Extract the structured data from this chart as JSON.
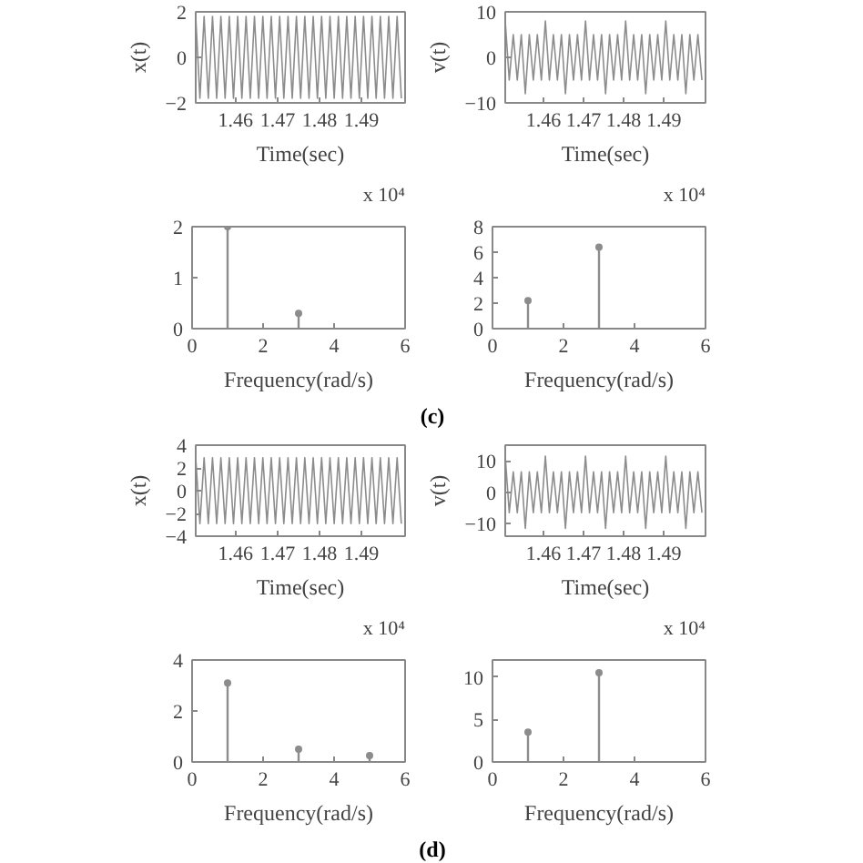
{
  "chart_data": [
    {
      "type": "line",
      "xlabel": "Time(sec)",
      "ylabel": "x(t)",
      "annotations": [
        "x 10⁴"
      ],
      "xlim": [
        1.4505,
        1.5004
      ],
      "xticks": [
        1.46,
        1.47,
        1.48,
        1.49
      ],
      "ylim": [
        -2,
        2
      ],
      "yticks": [
        -2,
        0,
        2
      ],
      "color": "#8c8c8c",
      "x": [
        1.4505,
        1.4515,
        1.4525,
        1.4535,
        1.4545,
        1.4555,
        1.4565,
        1.4575,
        1.4585,
        1.4595,
        1.4605,
        1.4615,
        1.4625,
        1.4635,
        1.4645,
        1.4655,
        1.4665,
        1.4675,
        1.4685,
        1.4695,
        1.4705,
        1.4715,
        1.4725,
        1.4735,
        1.4745,
        1.4755,
        1.4765,
        1.4775,
        1.4785,
        1.4795,
        1.4805,
        1.4815,
        1.4825,
        1.4835,
        1.4845,
        1.4855,
        1.4865,
        1.4875,
        1.4885,
        1.4895,
        1.4905,
        1.4915,
        1.4925,
        1.4935,
        1.4945,
        1.4955,
        1.4965,
        1.4975,
        1.4985,
        1.4995
      ],
      "values": [
        1.8,
        -1.8,
        1.8,
        -1.8,
        1.8,
        -1.8,
        1.8,
        -1.8,
        1.8,
        -1.8,
        1.8,
        -1.8,
        1.8,
        -1.8,
        1.8,
        -1.8,
        1.8,
        -1.8,
        1.8,
        -1.8,
        1.8,
        -1.8,
        1.8,
        -1.8,
        1.8,
        -1.8,
        1.8,
        -1.8,
        1.8,
        -1.8,
        1.8,
        -1.8,
        1.8,
        -1.8,
        1.8,
        -1.8,
        1.8,
        -1.8,
        1.8,
        -1.8,
        1.8,
        -1.8,
        1.8,
        -1.8,
        1.8,
        -1.8,
        1.8,
        -1.8,
        1.8,
        -1.8
      ]
    },
    {
      "type": "line",
      "xlabel": "Time(sec)",
      "ylabel": "v(t)",
      "annotations": [
        "x 10⁴"
      ],
      "xlim": [
        1.4505,
        1.5004
      ],
      "xticks": [
        1.46,
        1.47,
        1.48,
        1.49
      ],
      "ylim": [
        -10,
        10
      ],
      "yticks": [
        -10,
        0,
        10
      ],
      "color": "#8c8c8c",
      "x": [
        1.4505,
        1.4515,
        1.4525,
        1.4535,
        1.4545,
        1.4555,
        1.4565,
        1.4575,
        1.4585,
        1.4595,
        1.4605,
        1.4615,
        1.4625,
        1.4635,
        1.4645,
        1.4655,
        1.4665,
        1.4675,
        1.4685,
        1.4695,
        1.4705,
        1.4715,
        1.4725,
        1.4735,
        1.4745,
        1.4755,
        1.4765,
        1.4775,
        1.4785,
        1.4795,
        1.4805,
        1.4815,
        1.4825,
        1.4835,
        1.4845,
        1.4855,
        1.4865,
        1.4875,
        1.4885,
        1.4895,
        1.4905,
        1.4915,
        1.4925,
        1.4935,
        1.4945,
        1.4955,
        1.4965,
        1.4975,
        1.4985,
        1.4995
      ],
      "values": [
        8,
        -5,
        5,
        -5,
        5,
        -8,
        5,
        -5,
        5,
        -5,
        8,
        -5,
        5,
        -5,
        5,
        -8,
        5,
        -5,
        5,
        -5,
        8,
        -5,
        5,
        -5,
        5,
        -8,
        5,
        -5,
        5,
        -5,
        8,
        -5,
        5,
        -5,
        5,
        -8,
        5,
        -5,
        5,
        -5,
        8,
        -5,
        5,
        -5,
        5,
        -8,
        5,
        -5,
        5,
        -5
      ]
    },
    {
      "type": "lollipop",
      "xlabel": "Frequency(rad/s)",
      "marker": "circle",
      "xlim": [
        0,
        6
      ],
      "xticks": [
        0,
        2,
        4,
        6
      ],
      "ylim": [
        0,
        2
      ],
      "yticks": [
        0,
        1,
        2
      ],
      "color": "#8c8c8c",
      "x": [
        1,
        3
      ],
      "values": [
        2.0,
        0.3
      ]
    },
    {
      "type": "lollipop",
      "xlabel": "Frequency(rad/s)",
      "marker": "circle",
      "xlim": [
        0,
        6
      ],
      "xticks": [
        0,
        2,
        4,
        6
      ],
      "ylim": [
        0,
        8
      ],
      "yticks": [
        0,
        2,
        4,
        6,
        8
      ],
      "color": "#8c8c8c",
      "x": [
        1,
        3
      ],
      "values": [
        2.2,
        6.4
      ]
    },
    {
      "type": "other",
      "annotations": [
        "(c)"
      ]
    },
    {
      "type": "line",
      "xlabel": "Time(sec)",
      "ylabel": "x(t)",
      "annotations": [
        "x 10⁴"
      ],
      "xlim": [
        1.4505,
        1.5004
      ],
      "xticks": [
        1.46,
        1.47,
        1.48,
        1.49
      ],
      "ylim": [
        -4,
        4
      ],
      "yticks": [
        -4,
        -2,
        0,
        2,
        4
      ],
      "color": "#8c8c8c",
      "x": [
        1.4505,
        1.4515,
        1.4525,
        1.4535,
        1.4545,
        1.4555,
        1.4565,
        1.4575,
        1.4585,
        1.4595,
        1.4605,
        1.4615,
        1.4625,
        1.4635,
        1.4645,
        1.4655,
        1.4665,
        1.4675,
        1.4685,
        1.4695,
        1.4705,
        1.4715,
        1.4725,
        1.4735,
        1.4745,
        1.4755,
        1.4765,
        1.4775,
        1.4785,
        1.4795,
        1.4805,
        1.4815,
        1.4825,
        1.4835,
        1.4845,
        1.4855,
        1.4865,
        1.4875,
        1.4885,
        1.4895,
        1.4905,
        1.4915,
        1.4925,
        1.4935,
        1.4945,
        1.4955,
        1.4965,
        1.4975,
        1.4985,
        1.4995
      ],
      "values": [
        2.9,
        -2.9,
        2.9,
        -2.9,
        2.9,
        -2.9,
        2.9,
        -2.9,
        2.9,
        -2.9,
        2.9,
        -2.9,
        2.9,
        -2.9,
        2.9,
        -2.9,
        2.9,
        -2.9,
        2.9,
        -2.9,
        2.9,
        -2.9,
        2.9,
        -2.9,
        2.9,
        -2.9,
        2.9,
        -2.9,
        2.9,
        -2.9,
        2.9,
        -2.9,
        2.9,
        -2.9,
        2.9,
        -2.9,
        2.9,
        -2.9,
        2.9,
        -2.9,
        2.9,
        -2.9,
        2.9,
        -2.9,
        2.9,
        -2.9,
        2.9,
        -2.9,
        2.9,
        -2.9
      ]
    },
    {
      "type": "line",
      "xlabel": "Time(sec)",
      "ylabel": "v(t)",
      "annotations": [
        "x 10⁴"
      ],
      "xlim": [
        1.4505,
        1.5004
      ],
      "xticks": [
        1.46,
        1.47,
        1.48,
        1.49
      ],
      "ylim": [
        -14,
        15
      ],
      "yticks": [
        -10,
        0,
        10
      ],
      "color": "#8c8c8c",
      "x": [
        1.4505,
        1.4515,
        1.4525,
        1.4535,
        1.4545,
        1.4555,
        1.4565,
        1.4575,
        1.4585,
        1.4595,
        1.4605,
        1.4615,
        1.4625,
        1.4635,
        1.4645,
        1.4655,
        1.4665,
        1.4675,
        1.4685,
        1.4695,
        1.4705,
        1.4715,
        1.4725,
        1.4735,
        1.4745,
        1.4755,
        1.4765,
        1.4775,
        1.4785,
        1.4795,
        1.4805,
        1.4815,
        1.4825,
        1.4835,
        1.4845,
        1.4855,
        1.4865,
        1.4875,
        1.4885,
        1.4895,
        1.4905,
        1.4915,
        1.4925,
        1.4935,
        1.4945,
        1.4955,
        1.4965,
        1.4975,
        1.4985,
        1.4995
      ],
      "values": [
        11.5,
        -6.5,
        6.5,
        -6.5,
        6.5,
        -11.5,
        6.5,
        -6.5,
        6.5,
        -6.5,
        11.5,
        -6.5,
        6.5,
        -6.5,
        6.5,
        -11.5,
        6.5,
        -6.5,
        6.5,
        -6.5,
        11.5,
        -6.5,
        6.5,
        -6.5,
        6.5,
        -11.5,
        6.5,
        -6.5,
        6.5,
        -6.5,
        11.5,
        -6.5,
        6.5,
        -6.5,
        6.5,
        -11.5,
        6.5,
        -6.5,
        6.5,
        -6.5,
        11.5,
        -6.5,
        6.5,
        -6.5,
        6.5,
        -11.5,
        6.5,
        -6.5,
        6.5,
        -6.5
      ]
    },
    {
      "type": "lollipop",
      "xlabel": "Frequency(rad/s)",
      "marker": "circle",
      "xlim": [
        0,
        6
      ],
      "xticks": [
        0,
        2,
        4,
        6
      ],
      "ylim": [
        0,
        4
      ],
      "yticks": [
        0,
        2,
        4
      ],
      "color": "#8c8c8c",
      "x": [
        1,
        3,
        5
      ],
      "values": [
        3.1,
        0.5,
        0.25
      ]
    },
    {
      "type": "lollipop",
      "xlabel": "Frequency(rad/s)",
      "marker": "circle",
      "xlim": [
        0,
        6
      ],
      "xticks": [
        0,
        2,
        4,
        6
      ],
      "ylim": [
        0,
        12
      ],
      "yticks": [
        0,
        5,
        10
      ],
      "color": "#8c8c8c",
      "x": [
        1,
        3
      ],
      "values": [
        3.5,
        10.5
      ]
    },
    {
      "type": "other",
      "annotations": [
        "(d)"
      ]
    }
  ]
}
